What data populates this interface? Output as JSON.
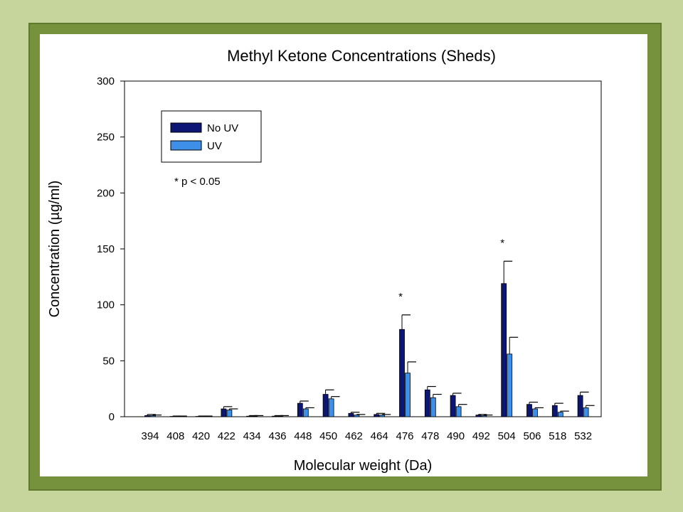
{
  "chart_data": {
    "type": "bar",
    "title": "Methyl Ketone Concentrations (Sheds)",
    "xlabel": "Molecular weight (Da)",
    "ylabel": "Concentration (µg/ml)",
    "ylim": [
      0,
      300
    ],
    "yticks": [
      0,
      50,
      100,
      150,
      200,
      250,
      300
    ],
    "categories": [
      "394",
      "408",
      "420",
      "422",
      "434",
      "436",
      "448",
      "450",
      "462",
      "464",
      "476",
      "478",
      "490",
      "492",
      "504",
      "506",
      "518",
      "532"
    ],
    "series": [
      {
        "name": "No UV",
        "color": "#0d1674",
        "values": [
          1,
          0.3,
          0.3,
          7,
          0.5,
          0.5,
          12,
          20,
          3,
          2,
          78,
          24,
          19,
          1.5,
          119,
          11,
          10,
          19
        ],
        "errors": [
          1,
          0.3,
          0.3,
          2,
          0.5,
          0.5,
          2,
          4,
          1,
          1,
          13,
          3,
          2,
          0.5,
          20,
          2,
          2,
          3
        ]
      },
      {
        "name": "UV",
        "color": "#3d8fe8",
        "values": [
          1,
          0.3,
          0.3,
          6,
          0.5,
          0.5,
          7,
          16,
          1.5,
          1.5,
          39,
          17,
          9,
          1,
          56,
          7,
          4,
          8
        ],
        "errors": [
          0.5,
          0.3,
          0.3,
          1,
          0.5,
          0.5,
          1,
          2,
          0.5,
          0.5,
          10,
          3,
          2,
          0.5,
          15,
          1,
          1,
          2
        ]
      }
    ],
    "significant_categories": [
      "476",
      "504"
    ],
    "significance_marker": "*",
    "note": "* p < 0.05",
    "legend_position": "top-left",
    "grid": false
  }
}
